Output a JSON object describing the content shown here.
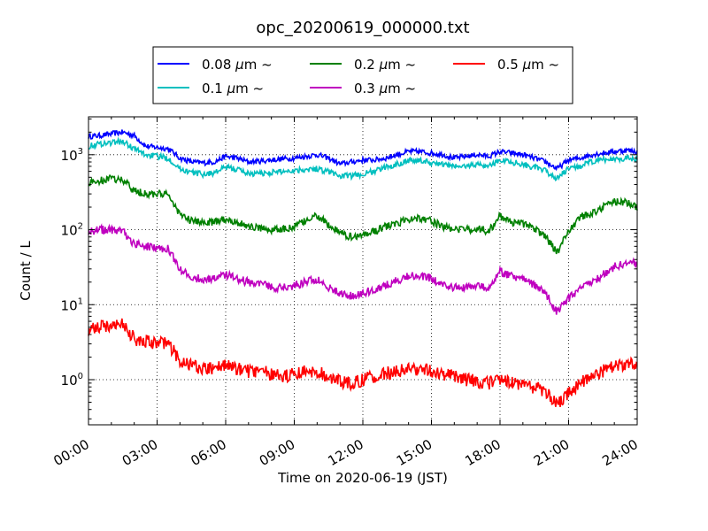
{
  "chart_data": {
    "type": "line",
    "title": "opc_20200619_000000.txt",
    "xlabel": "Time on 2020-06-19 (JST)",
    "ylabel": "Count / L",
    "yscale": "log",
    "ylim": [
      0.25,
      3200
    ],
    "xlim": [
      "00:00",
      "24:00"
    ],
    "grid": true,
    "legend_position": "top",
    "x_ticks": [
      "00:00",
      "03:00",
      "06:00",
      "09:00",
      "12:00",
      "15:00",
      "18:00",
      "21:00",
      "24:00"
    ],
    "y_ticks": [
      {
        "value": 1,
        "base": "10",
        "exp": "0"
      },
      {
        "value": 10,
        "base": "10",
        "exp": "1"
      },
      {
        "value": 100,
        "base": "10",
        "exp": "2"
      },
      {
        "value": 1000,
        "base": "10",
        "exp": "3"
      }
    ],
    "x_hours": [
      0,
      0.5,
      1,
      1.5,
      2,
      2.5,
      3,
      3.5,
      4,
      4.5,
      5,
      5.5,
      6,
      6.5,
      7,
      7.5,
      8,
      8.5,
      9,
      9.5,
      10,
      10.5,
      11,
      11.5,
      12,
      12.5,
      13,
      13.5,
      14,
      14.5,
      15,
      15.5,
      16,
      16.5,
      17,
      17.5,
      18,
      18.5,
      19,
      19.5,
      20,
      20.5,
      21,
      21.5,
      22,
      22.5,
      23,
      23.5,
      24
    ],
    "series": [
      {
        "name": "0.08 μm ~",
        "label_size": "0.08",
        "color": "#0000ff",
        "values": [
          1750,
          1800,
          1900,
          2000,
          1800,
          1300,
          1250,
          1200,
          900,
          800,
          780,
          800,
          950,
          900,
          800,
          820,
          850,
          880,
          900,
          950,
          1000,
          900,
          750,
          800,
          850,
          850,
          900,
          1000,
          1100,
          1100,
          1050,
          1000,
          900,
          950,
          1000,
          950,
          1100,
          1050,
          1000,
          900,
          800,
          650,
          850,
          900,
          1000,
          1050,
          1100,
          1150,
          1100
        ]
      },
      {
        "name": "0.1 μm ~",
        "label_size": "0.1",
        "color": "#00bfbf",
        "values": [
          1300,
          1400,
          1450,
          1500,
          1200,
          1000,
          950,
          900,
          650,
          580,
          550,
          570,
          680,
          640,
          560,
          560,
          580,
          600,
          620,
          640,
          650,
          600,
          520,
          520,
          550,
          600,
          680,
          750,
          850,
          830,
          780,
          740,
          700,
          700,
          750,
          700,
          850,
          800,
          750,
          680,
          600,
          480,
          650,
          700,
          800,
          850,
          880,
          900,
          880
        ]
      },
      {
        "name": "0.2 μm ~",
        "label_size": "0.2",
        "color": "#008000",
        "values": [
          420,
          450,
          480,
          460,
          330,
          300,
          300,
          290,
          160,
          130,
          125,
          125,
          140,
          125,
          110,
          105,
          100,
          100,
          110,
          130,
          155,
          115,
          90,
          80,
          85,
          95,
          110,
          120,
          140,
          145,
          130,
          110,
          100,
          100,
          105,
          95,
          150,
          125,
          120,
          105,
          80,
          50,
          95,
          150,
          160,
          200,
          240,
          230,
          200
        ]
      },
      {
        "name": "0.3 μm ~",
        "label_size": "0.3",
        "color": "#bf00bf",
        "values": [
          95,
          100,
          100,
          95,
          65,
          60,
          58,
          55,
          30,
          23,
          22,
          22,
          25,
          22,
          20,
          19,
          17,
          17,
          18,
          20,
          22,
          17,
          14,
          13,
          14,
          16,
          18,
          21,
          24,
          24,
          22,
          18,
          17,
          17,
          18,
          17,
          28,
          24,
          22,
          18,
          14,
          8,
          12,
          16,
          20,
          25,
          32,
          36,
          35
        ]
      },
      {
        "name": "0.5 μm ~",
        "label_size": "0.5",
        "color": "#ff0000",
        "values": [
          4.5,
          5.0,
          5.5,
          5.5,
          3.5,
          3.2,
          3.1,
          3.0,
          1.8,
          1.5,
          1.45,
          1.4,
          1.6,
          1.4,
          1.3,
          1.3,
          1.2,
          1.1,
          1.2,
          1.3,
          1.3,
          1.1,
          0.95,
          0.9,
          1.0,
          1.1,
          1.2,
          1.3,
          1.35,
          1.4,
          1.3,
          1.2,
          1.1,
          1.0,
          0.95,
          0.9,
          1.0,
          0.9,
          0.85,
          0.8,
          0.7,
          0.45,
          0.65,
          0.9,
          1.1,
          1.3,
          1.5,
          1.6,
          1.7
        ]
      }
    ]
  }
}
